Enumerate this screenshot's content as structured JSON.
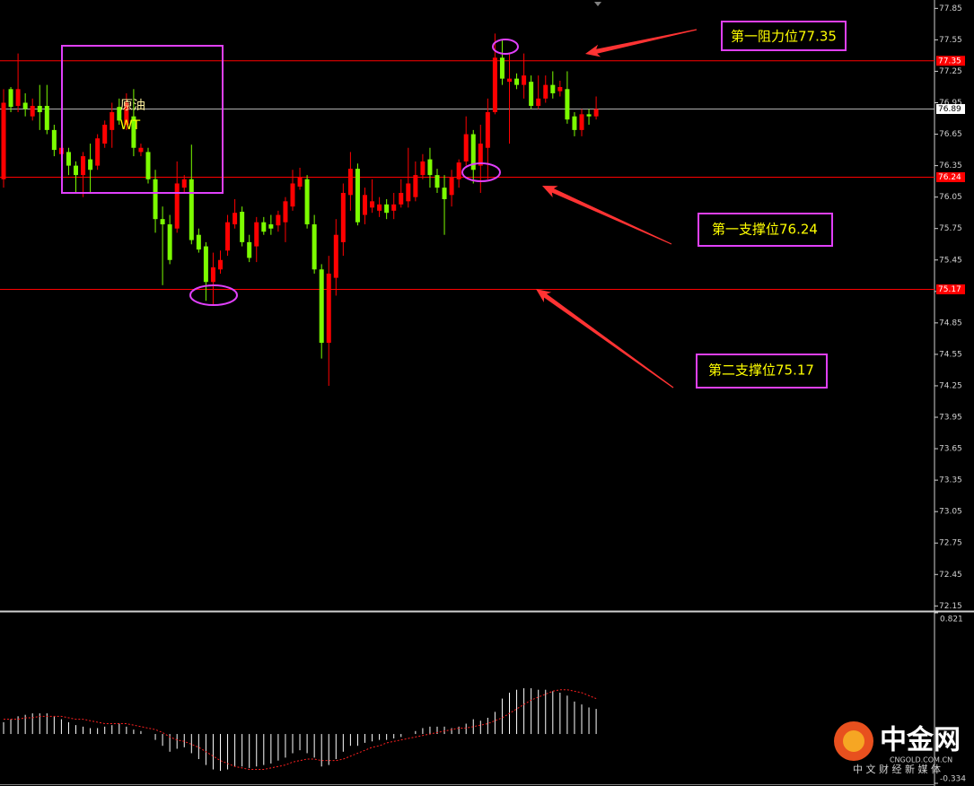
{
  "chart_data": [
    {
      "type": "candlestick",
      "up_color": "#ff0000",
      "down_color": "#7cfc00",
      "open": [
        76.22,
        77.08,
        76.92,
        76.95,
        76.82,
        76.92,
        76.92,
        76.69,
        76.46,
        76.48,
        76.35,
        76.26,
        76.41,
        76.35,
        76.56,
        76.69,
        76.91,
        76.74,
        76.82,
        76.48,
        76.48,
        76.22,
        75.84,
        75.79,
        75.75,
        76.14,
        76.22,
        75.69,
        75.58,
        75.24,
        75.36,
        75.54,
        75.79,
        75.91,
        75.62,
        75.58,
        75.81,
        75.79,
        75.78,
        75.81,
        75.96,
        76.15,
        76.22,
        75.79,
        75.36,
        74.66,
        75.28,
        75.62,
        76.07,
        76.32,
        75.88,
        75.95,
        75.92,
        75.98,
        75.92,
        75.98,
        76.01,
        76.05,
        76.26,
        76.41,
        76.26,
        76.14,
        76.07,
        76.22,
        76.39,
        76.65,
        76.35,
        76.52,
        76.86,
        77.38,
        77.15,
        77.18,
        77.12,
        77.15,
        76.92,
        76.99,
        77.12,
        77.06,
        77.08,
        76.82,
        76.69,
        76.84,
        76.82
      ],
      "high": [
        77.08,
        77.1,
        77.42,
        77.04,
        76.99,
        77.12,
        77.12,
        76.74,
        76.65,
        76.52,
        76.39,
        76.48,
        76.56,
        76.65,
        76.78,
        76.95,
        76.99,
        77.04,
        77.08,
        76.56,
        76.52,
        76.31,
        75.96,
        75.88,
        76.39,
        76.26,
        76.55,
        75.75,
        75.62,
        75.52,
        75.54,
        75.88,
        76.03,
        75.96,
        75.69,
        75.86,
        75.86,
        75.88,
        75.92,
        76.05,
        76.31,
        76.33,
        76.26,
        75.88,
        75.41,
        75.49,
        75.84,
        76.18,
        76.48,
        76.37,
        76.14,
        76.22,
        76.05,
        76.03,
        76.09,
        76.22,
        76.52,
        76.39,
        76.46,
        76.52,
        76.32,
        76.26,
        76.31,
        76.41,
        76.82,
        76.69,
        76.74,
        76.99,
        77.61,
        77.55,
        77.42,
        77.23,
        77.42,
        77.21,
        77.21,
        77.21,
        77.25,
        77.16,
        77.25,
        76.86,
        76.89,
        76.89,
        77.01
      ],
      "low": [
        76.14,
        76.86,
        76.86,
        76.82,
        76.78,
        76.69,
        76.65,
        76.44,
        76.39,
        76.26,
        76.09,
        76.05,
        76.09,
        76.31,
        76.52,
        76.52,
        76.74,
        76.69,
        76.44,
        76.44,
        76.18,
        75.71,
        75.21,
        75.41,
        75.71,
        76.09,
        75.6,
        75.52,
        75.06,
        75.02,
        75.32,
        75.49,
        75.75,
        75.58,
        75.43,
        75.43,
        75.69,
        75.69,
        75.72,
        75.62,
        75.92,
        76.12,
        75.75,
        75.32,
        74.51,
        74.25,
        75.11,
        75.49,
        75.92,
        75.78,
        75.79,
        75.9,
        75.86,
        75.84,
        75.84,
        75.95,
        75.95,
        76.01,
        76.22,
        76.14,
        76.09,
        75.69,
        75.96,
        76.14,
        76.35,
        76.18,
        76.09,
        76.22,
        76.84,
        77.12,
        76.56,
        77.08,
        76.99,
        76.89,
        76.89,
        76.95,
        76.99,
        77.01,
        76.75,
        76.63,
        76.63,
        76.74,
        76.79
      ],
      "close": [
        76.95,
        76.91,
        77.08,
        76.89,
        76.92,
        76.86,
        76.69,
        76.5,
        76.52,
        76.35,
        76.26,
        76.44,
        76.31,
        76.61,
        76.74,
        76.86,
        76.78,
        76.95,
        76.52,
        76.52,
        76.22,
        75.84,
        75.79,
        75.45,
        76.18,
        76.22,
        75.64,
        75.55,
        75.24,
        75.38,
        75.45,
        75.81,
        75.9,
        75.62,
        75.47,
        75.81,
        75.72,
        75.75,
        75.88,
        76.01,
        76.18,
        76.24,
        75.79,
        75.36,
        74.66,
        75.32,
        75.69,
        76.09,
        76.32,
        75.81,
        76.07,
        76.01,
        75.98,
        75.9,
        75.98,
        76.09,
        76.18,
        76.26,
        76.39,
        76.26,
        76.14,
        76.03,
        76.24,
        76.38,
        76.65,
        76.31,
        76.56,
        76.86,
        77.38,
        77.18,
        77.18,
        77.12,
        77.21,
        76.92,
        76.99,
        77.12,
        77.04,
        77.1,
        76.79,
        76.69,
        76.84,
        76.82,
        76.89
      ],
      "ylim": [
        72.11,
        77.93
      ],
      "yticks": [
        72.15,
        72.45,
        72.75,
        73.05,
        73.35,
        73.65,
        73.95,
        74.25,
        74.55,
        74.85,
        75.15,
        75.45,
        75.75,
        76.05,
        76.35,
        76.65,
        76.95,
        77.25,
        77.55,
        77.85
      ],
      "grid": false,
      "levels": [
        {
          "value": 77.35,
          "label": "第一阻力位77.35",
          "color": "#ff0000"
        },
        {
          "value": 76.24,
          "label": "第一支撑位76.24",
          "color": "#ff0000"
        },
        {
          "value": 75.17,
          "label": "第二支撑位75.17",
          "color": "#ff0000"
        }
      ],
      "annotation_lines": [
        "原油",
        "WT"
      ],
      "watermark": {
        "brand": "中金网",
        "site": "CNGOLD.COM.CN",
        "slogan": "中 文 财 经 新 媒 体"
      }
    },
    {
      "type": "macd",
      "histogram": {
        "color": "#ffffff",
        "values": [
          0.08,
          0.1,
          0.12,
          0.13,
          0.14,
          0.14,
          0.14,
          0.12,
          0.1,
          0.08,
          0.06,
          0.05,
          0.04,
          0.04,
          0.05,
          0.06,
          0.07,
          0.05,
          0.03,
          0.02,
          0.0,
          -0.04,
          -0.08,
          -0.12,
          -0.1,
          -0.09,
          -0.13,
          -0.17,
          -0.21,
          -0.24,
          -0.25,
          -0.24,
          -0.22,
          -0.22,
          -0.23,
          -0.22,
          -0.21,
          -0.2,
          -0.18,
          -0.16,
          -0.13,
          -0.11,
          -0.13,
          -0.16,
          -0.22,
          -0.21,
          -0.17,
          -0.12,
          -0.08,
          -0.08,
          -0.06,
          -0.05,
          -0.04,
          -0.04,
          -0.03,
          -0.02,
          0.0,
          0.02,
          0.04,
          0.05,
          0.05,
          0.05,
          0.04,
          0.05,
          0.07,
          0.1,
          0.09,
          0.11,
          0.15,
          0.24,
          0.28,
          0.3,
          0.31,
          0.31,
          0.3,
          0.3,
          0.29,
          0.28,
          0.26,
          0.22,
          0.2,
          0.18,
          0.17
        ]
      },
      "signal": {
        "color": "#ff2020",
        "values": [
          0.1,
          0.1,
          0.1,
          0.11,
          0.11,
          0.12,
          0.12,
          0.12,
          0.12,
          0.11,
          0.1,
          0.1,
          0.09,
          0.08,
          0.07,
          0.07,
          0.07,
          0.07,
          0.06,
          0.05,
          0.04,
          0.03,
          0.01,
          -0.02,
          -0.04,
          -0.05,
          -0.07,
          -0.09,
          -0.12,
          -0.15,
          -0.18,
          -0.2,
          -0.22,
          -0.23,
          -0.24,
          -0.24,
          -0.24,
          -0.23,
          -0.22,
          -0.21,
          -0.19,
          -0.18,
          -0.17,
          -0.17,
          -0.18,
          -0.18,
          -0.18,
          -0.17,
          -0.15,
          -0.13,
          -0.11,
          -0.09,
          -0.08,
          -0.06,
          -0.05,
          -0.04,
          -0.03,
          -0.02,
          -0.01,
          0.0,
          0.01,
          0.02,
          0.03,
          0.04,
          0.04,
          0.05,
          0.06,
          0.07,
          0.09,
          0.11,
          0.14,
          0.17,
          0.2,
          0.23,
          0.25,
          0.27,
          0.29,
          0.3,
          0.3,
          0.29,
          0.28,
          0.26,
          0.24
        ]
      },
      "ylim": [
        -0.334,
        0.821
      ],
      "yticks": [
        0.821,
        -0.334
      ]
    }
  ]
}
